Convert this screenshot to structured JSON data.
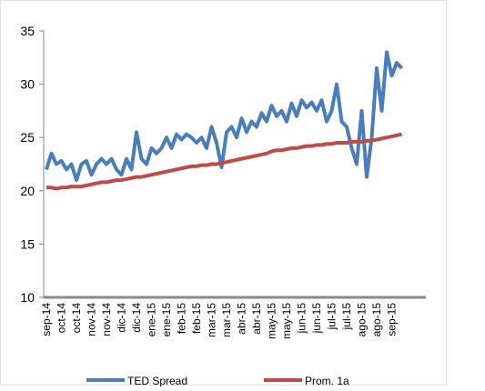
{
  "chart_data": {
    "type": "line",
    "categories": [
      "sep-14",
      null,
      null,
      "oct-14",
      null,
      null,
      "oct-14",
      null,
      null,
      "nov-14",
      null,
      null,
      "nov-14",
      null,
      null,
      "dic-14",
      null,
      null,
      "dic-14",
      null,
      null,
      "ene-15",
      null,
      null,
      "ene-15",
      null,
      null,
      "feb-15",
      null,
      null,
      "feb-15",
      null,
      null,
      "mar-15",
      null,
      null,
      "mar-15",
      null,
      null,
      "abr-15",
      null,
      null,
      "abr-15",
      null,
      null,
      "may-15",
      null,
      null,
      "may-15",
      null,
      null,
      "jun-15",
      null,
      null,
      "jun-15",
      null,
      null,
      "jul-15",
      null,
      null,
      "jul-15",
      null,
      null,
      "ago-15",
      null,
      null,
      "ago-15",
      null,
      null,
      "sep-15",
      null,
      null
    ],
    "series": [
      {
        "name": "TED Spread",
        "color": "#4a7ebb",
        "values": [
          22,
          23.5,
          22.5,
          22.8,
          22,
          22.5,
          21,
          22.5,
          22.8,
          21.5,
          22.5,
          23,
          22.5,
          23,
          22,
          21.5,
          23,
          22,
          25.5,
          23,
          22.5,
          24,
          23.5,
          24,
          25,
          24,
          25.3,
          24.8,
          25.3,
          25,
          24.5,
          25,
          24,
          26,
          24.5,
          22.2,
          25.5,
          26,
          25,
          26.8,
          25.5,
          26.5,
          26,
          27.3,
          26.5,
          28,
          27,
          27.5,
          26.5,
          28.2,
          27,
          28.5,
          27.8,
          28.3,
          27.5,
          28.5,
          26.5,
          27.5,
          30,
          26.5,
          26,
          24,
          22.5,
          27.5,
          21.3,
          25,
          31.5,
          27.5,
          33,
          30.8,
          32,
          31.5
        ]
      },
      {
        "name": "Prom. 1a",
        "color": "#be4b48",
        "values": [
          20.3,
          20.3,
          20.2,
          20.3,
          20.3,
          20.4,
          20.4,
          20.4,
          20.5,
          20.6,
          20.7,
          20.8,
          20.8,
          20.9,
          21.0,
          21.0,
          21.1,
          21.2,
          21.3,
          21.3,
          21.4,
          21.5,
          21.6,
          21.7,
          21.8,
          21.9,
          22.0,
          22.1,
          22.2,
          22.3,
          22.3,
          22.4,
          22.4,
          22.5,
          22.5,
          22.6,
          22.7,
          22.8,
          22.9,
          23.0,
          23.1,
          23.2,
          23.3,
          23.4,
          23.5,
          23.7,
          23.8,
          23.8,
          23.9,
          24.0,
          24.0,
          24.1,
          24.2,
          24.2,
          24.3,
          24.3,
          24.4,
          24.4,
          24.5,
          24.5,
          24.5,
          24.6,
          24.6,
          24.6,
          24.7,
          24.7,
          24.8,
          24.9,
          25.0,
          25.1,
          25.2,
          25.3
        ]
      }
    ],
    "ylim": [
      10,
      35
    ],
    "yticks": [
      10,
      15,
      20,
      25,
      30,
      35
    ],
    "legend": "bottom"
  }
}
